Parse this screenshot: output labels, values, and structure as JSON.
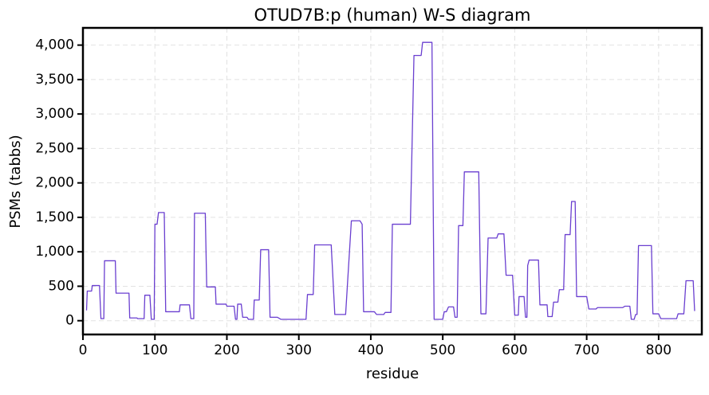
{
  "chart_data": {
    "type": "line",
    "title": "OTUD7B:p (human) W-S diagram",
    "xlabel": "residue",
    "ylabel": "PSMs (tabbs)",
    "xlim": [
      0,
      860
    ],
    "ylim": [
      -200,
      4250
    ],
    "xticks": [
      0,
      100,
      200,
      300,
      400,
      500,
      600,
      700,
      800
    ],
    "yticks": [
      0,
      500,
      {
        "value": 1000,
        "label": "1,000"
      },
      {
        "value": 1500,
        "label": "1,500"
      },
      {
        "value": 2000,
        "label": "2,000"
      },
      {
        "value": 2500,
        "label": "2,500"
      },
      {
        "value": 3000,
        "label": "3,000"
      },
      {
        "value": 3500,
        "label": "3,500"
      },
      {
        "value": 4000,
        "label": "4,000"
      }
    ],
    "grid": true,
    "series": [
      {
        "name": "OTUD7B:p",
        "color": "#6a3fd0",
        "x": [
          5,
          6,
          12,
          13,
          23,
          25,
          29,
          30,
          45,
          46,
          64,
          65,
          75,
          76,
          85,
          86,
          93,
          95,
          99,
          100,
          103,
          105,
          113,
          115,
          134,
          135,
          148,
          150,
          154,
          155,
          170,
          172,
          184,
          185,
          199,
          200,
          210,
          212,
          214,
          215,
          220,
          222,
          228,
          230,
          237,
          238,
          245,
          247,
          258,
          260,
          270,
          275,
          310,
          312,
          320,
          322,
          345,
          350,
          365,
          373,
          385,
          388,
          390,
          405,
          408,
          418,
          420,
          428,
          430,
          455,
          460,
          470,
          472,
          485,
          488,
          500,
          502,
          505,
          508,
          515,
          517,
          520,
          522,
          528,
          530,
          550,
          553,
          560,
          563,
          575,
          577,
          585,
          588,
          597,
          600,
          605,
          606,
          613,
          615,
          617,
          618,
          620,
          633,
          635,
          645,
          646,
          652,
          654,
          660,
          662,
          668,
          670,
          677,
          679,
          684,
          686,
          700,
          703,
          713,
          715,
          750,
          753,
          760,
          762,
          766,
          768,
          770,
          772,
          790,
          792,
          800,
          803,
          825,
          827,
          835,
          838,
          848,
          850
        ],
        "values": [
          150,
          430,
          430,
          510,
          510,
          30,
          30,
          870,
          870,
          400,
          400,
          40,
          40,
          30,
          30,
          370,
          370,
          20,
          20,
          1400,
          1400,
          1570,
          1570,
          130,
          130,
          230,
          230,
          30,
          30,
          1560,
          1560,
          490,
          490,
          240,
          240,
          210,
          210,
          20,
          20,
          240,
          240,
          50,
          50,
          20,
          20,
          300,
          300,
          1030,
          1030,
          50,
          50,
          20,
          20,
          380,
          380,
          1100,
          1100,
          90,
          90,
          1450,
          1450,
          1400,
          130,
          130,
          90,
          90,
          120,
          120,
          1400,
          1400,
          3850,
          3850,
          4040,
          4040,
          20,
          20,
          130,
          130,
          200,
          200,
          50,
          50,
          1380,
          1380,
          2160,
          2160,
          100,
          100,
          1200,
          1200,
          1260,
          1260,
          660,
          660,
          80,
          80,
          350,
          350,
          50,
          50,
          800,
          880,
          880,
          230,
          230,
          60,
          60,
          270,
          270,
          450,
          450,
          1250,
          1250,
          1730,
          1730,
          350,
          350,
          170,
          170,
          190,
          190,
          210,
          210,
          20,
          20,
          90,
          90,
          1090,
          1090,
          100,
          100,
          30,
          30,
          100,
          100,
          580,
          580,
          140
        ]
      }
    ]
  }
}
